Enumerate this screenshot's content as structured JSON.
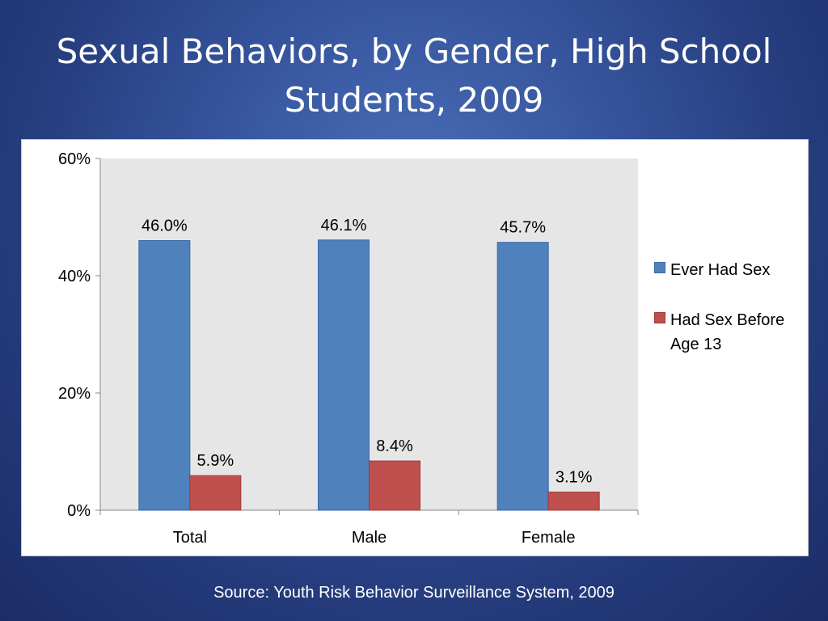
{
  "slide": {
    "title": "Sexual Behaviors, by Gender, High School Students, 2009",
    "source": "Source: Youth Risk Behavior Surveillance System, 2009"
  },
  "colors": {
    "series_1": "#4f81bd",
    "series_2": "#c0504d",
    "plot_background": "#e6e6e6"
  },
  "chart_data": {
    "type": "bar",
    "categories": [
      "Total",
      "Male",
      "Female"
    ],
    "series": [
      {
        "name": "Ever Had Sex",
        "values": [
          46.0,
          46.1,
          45.7
        ],
        "labels": [
          "46.0%",
          "46.1%",
          "45.7%"
        ]
      },
      {
        "name": "Had Sex Before Age 13",
        "values": [
          5.9,
          8.4,
          3.1
        ],
        "labels": [
          "5.9%",
          "8.4%",
          "3.1%"
        ]
      }
    ],
    "ylim": [
      0,
      60
    ],
    "yticks": [
      0,
      20,
      40,
      60
    ],
    "ytick_labels": [
      "0%",
      "20%",
      "40%",
      "60%"
    ],
    "legend_position": "right",
    "grid": false
  }
}
